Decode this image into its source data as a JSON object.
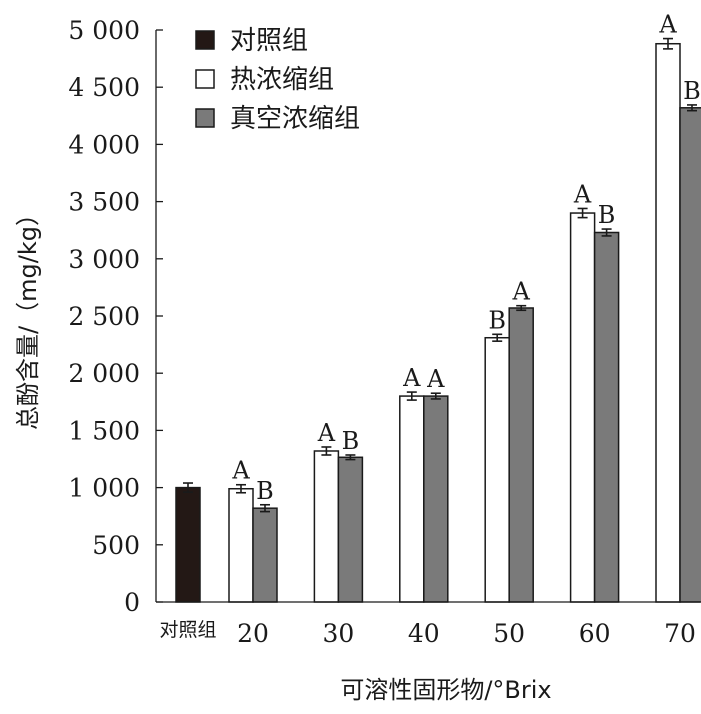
{
  "chart_data": {
    "type": "bar",
    "title": "",
    "xlabel": "可溶性固形物/°Brix",
    "ylabel": "总酚含量/（mg/kg）",
    "ylim": [
      0,
      5000
    ],
    "yticks": [
      0,
      500,
      1000,
      1500,
      2000,
      2500,
      3000,
      3500,
      4000,
      4500,
      5000
    ],
    "ytick_labels": [
      "0",
      "500",
      "1 000",
      "1 500",
      "2 000",
      "2 500",
      "3 000",
      "3 500",
      "4 000",
      "4 500",
      "5 000"
    ],
    "grid": false,
    "legend_position": "top-left",
    "legend": [
      {
        "name": "对照组",
        "color": "#231815"
      },
      {
        "name": "热浓缩组",
        "color": "#ffffff"
      },
      {
        "name": "真空浓缩组",
        "color": "#7a7a7a"
      }
    ],
    "control": {
      "label": "对照组",
      "value": 1000,
      "error": 40
    },
    "categories": [
      "20",
      "30",
      "40",
      "50",
      "60",
      "70"
    ],
    "series": [
      {
        "name": "热浓缩组",
        "values": [
          990,
          1320,
          1800,
          2310,
          3400,
          4880
        ],
        "errors": [
          35,
          35,
          35,
          30,
          40,
          45
        ],
        "sig": [
          "A",
          "A",
          "A",
          "B",
          "A",
          "A"
        ]
      },
      {
        "name": "真空浓缩组",
        "values": [
          820,
          1265,
          1800,
          2570,
          3230,
          4320
        ],
        "errors": [
          30,
          20,
          25,
          20,
          30,
          25
        ],
        "sig": [
          "B",
          "B",
          "A",
          "A",
          "B",
          "B"
        ]
      }
    ]
  }
}
